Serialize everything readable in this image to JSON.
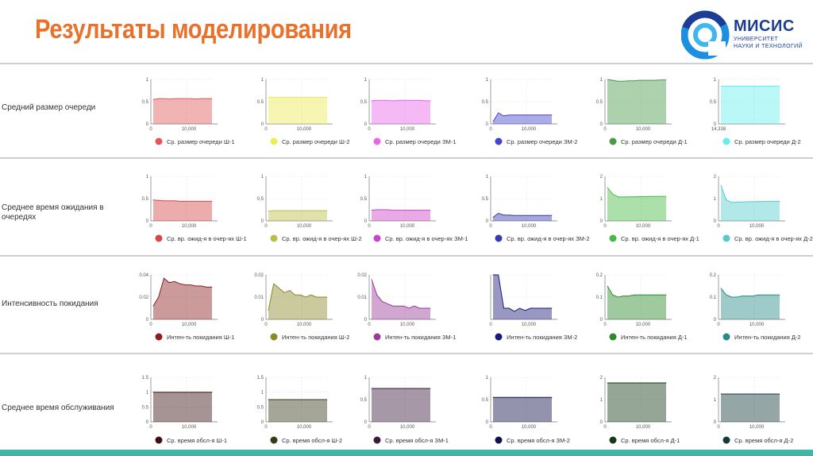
{
  "header": {
    "title": "Результаты моделирования"
  },
  "logo": {
    "name": "МИСИС",
    "line1": "УНИВЕРСИТЕТ",
    "line2": "НАУКИ И ТЕХНОЛОГИЙ"
  },
  "chart_data": [
    {
      "type": "area",
      "row_label": "Средний размер очереди",
      "charts": [
        {
          "series": "Ср. размер очереди Ш-1",
          "color": "#e05858",
          "yticks": [
            "0",
            "0.5",
            "1"
          ],
          "ylim": [
            0,
            1
          ],
          "xtick": "10,000",
          "x0": "0",
          "y": [
            0.55,
            0.57,
            0.57,
            0.56,
            0.57,
            0.57,
            0.57,
            0.57,
            0.56,
            0.57,
            0.57,
            0.57
          ]
        },
        {
          "series": "Ср. размер очереди Ш-2",
          "color": "#ecec55",
          "yticks": [
            "0",
            "0.5",
            "1"
          ],
          "ylim": [
            0,
            1
          ],
          "xtick": "10,000",
          "x0": "0",
          "y": [
            0.6,
            0.6,
            0.6,
            0.6,
            0.6,
            0.6,
            0.6,
            0.6,
            0.6,
            0.6,
            0.6,
            0.6
          ]
        },
        {
          "series": "Ср. размер очереди ЗМ-1",
          "color": "#e866e8",
          "yticks": [
            "0",
            "0.5",
            "1"
          ],
          "ylim": [
            0,
            1
          ],
          "xtick": "10,000",
          "x0": "0",
          "y": [
            0.52,
            0.53,
            0.53,
            0.53,
            0.52,
            0.53,
            0.53,
            0.53,
            0.53,
            0.53,
            0.52,
            0.52
          ]
        },
        {
          "series": "Ср. размер очереди ЗМ-2",
          "color": "#4444cc",
          "yticks": [
            "0",
            "0.5",
            "1"
          ],
          "ylim": [
            0,
            1
          ],
          "xtick": "10,000",
          "x0": "0",
          "y": [
            0.05,
            0.25,
            0.18,
            0.2,
            0.2,
            0.2,
            0.2,
            0.2,
            0.2,
            0.2,
            0.2,
            0.2
          ]
        },
        {
          "series": "Ср. размер очереди Д-1",
          "color": "#4a9a4a",
          "yticks": [
            "0",
            "0.5",
            "1"
          ],
          "ylim": [
            0,
            1
          ],
          "xtick": "10,000",
          "x0": "0",
          "y": [
            1,
            0.98,
            0.96,
            0.96,
            0.97,
            0.97,
            0.98,
            0.98,
            0.98,
            0.98,
            0.99,
            0.99
          ]
        },
        {
          "series": "Ср. размер очереди Д-2",
          "color": "#66eeee",
          "yticks": [
            "0",
            "0.5",
            "1"
          ],
          "ylim": [
            0,
            1
          ],
          "xtick": "",
          "x0": "14,338",
          "y": [
            0.85,
            0.85,
            0.85,
            0.85,
            0.85,
            0.85,
            0.85,
            0.85,
            0.85,
            0.85,
            0.85,
            0.85
          ]
        }
      ]
    },
    {
      "type": "area",
      "row_label": "Среднее время ожидания в очередях",
      "charts": [
        {
          "series": "Ср. вр. ожид-я в очер-ях Ш-1",
          "color": "#d84848",
          "yticks": [
            "0",
            "0.5",
            "1"
          ],
          "ylim": [
            0,
            1
          ],
          "xtick": "10,000",
          "x0": "0",
          "y": [
            0.47,
            0.46,
            0.45,
            0.45,
            0.45,
            0.44,
            0.44,
            0.44,
            0.44,
            0.44,
            0.44,
            0.44
          ]
        },
        {
          "series": "Ср. вр. ожид-я в очер-ях Ш-2",
          "color": "#bcbc48",
          "yticks": [
            "0",
            "0.5",
            "1"
          ],
          "ylim": [
            0,
            1
          ],
          "xtick": "10,000",
          "x0": "0",
          "y": [
            0.22,
            0.23,
            0.23,
            0.23,
            0.23,
            0.23,
            0.23,
            0.23,
            0.23,
            0.23,
            0.23,
            0.23
          ]
        },
        {
          "series": "Ср. вр. ожид-я в очер-ях ЗМ-1",
          "color": "#cc44cc",
          "yticks": [
            "0",
            "0.5",
            "1"
          ],
          "ylim": [
            0,
            1
          ],
          "xtick": "10,000",
          "x0": "0",
          "y": [
            0.24,
            0.25,
            0.25,
            0.25,
            0.24,
            0.24,
            0.24,
            0.24,
            0.24,
            0.24,
            0.24,
            0.24
          ]
        },
        {
          "series": "Ср. вр. ожид-я в очер-ях ЗМ-2",
          "color": "#3a3ab0",
          "yticks": [
            "0",
            "0.5",
            "1"
          ],
          "ylim": [
            0,
            1
          ],
          "xtick": "10,000",
          "x0": "0",
          "y": [
            0.08,
            0.17,
            0.13,
            0.13,
            0.12,
            0.12,
            0.12,
            0.12,
            0.12,
            0.12,
            0.12,
            0.12
          ]
        },
        {
          "series": "Ср. вр. ожид-я в очер-ях Д-1",
          "color": "#44bb44",
          "yticks": [
            "0",
            "1",
            "2"
          ],
          "ylim": [
            0,
            2
          ],
          "xtick": "10,000",
          "x0": "0",
          "y": [
            1.5,
            1.2,
            1.08,
            1.07,
            1.08,
            1.08,
            1.09,
            1.09,
            1.1,
            1.1,
            1.1,
            1.1
          ]
        },
        {
          "series": "Ср. вр. ожид-я в очер-ях Д-2",
          "color": "#55cccc",
          "yticks": [
            "0",
            "1",
            "2"
          ],
          "ylim": [
            0,
            2
          ],
          "xtick": "10,000",
          "x0": "0",
          "y": [
            1.6,
            0.95,
            0.82,
            0.85,
            0.85,
            0.86,
            0.86,
            0.87,
            0.87,
            0.88,
            0.88,
            0.88
          ]
        }
      ]
    },
    {
      "type": "area",
      "row_label": "Интенсивность покидания",
      "charts": [
        {
          "series": "Интен-ть покидания Ш-1",
          "color": "#8b1e1e",
          "yticks": [
            "0",
            "0.02",
            "0.04"
          ],
          "ylim": [
            0,
            0.04
          ],
          "xtick": "10,000",
          "x0": "0",
          "y": [
            0.012,
            0.02,
            0.037,
            0.033,
            0.034,
            0.032,
            0.031,
            0.031,
            0.03,
            0.03,
            0.029,
            0.029
          ]
        },
        {
          "series": "Интен-ть покидания Ш-2",
          "color": "#8a8a28",
          "yticks": [
            "0",
            "0.01",
            "0.02"
          ],
          "ylim": [
            0,
            0.02
          ],
          "xtick": "10,000",
          "x0": "0",
          "y": [
            0.004,
            0.016,
            0.014,
            0.012,
            0.013,
            0.011,
            0.011,
            0.01,
            0.011,
            0.01,
            0.01,
            0.01
          ]
        },
        {
          "series": "Интен-ть покидания ЗМ-1",
          "color": "#9a3a9a",
          "yticks": [
            "0",
            "0.01",
            "0.02"
          ],
          "ylim": [
            0,
            0.02
          ],
          "xtick": "10,000",
          "x0": "0",
          "y": [
            0.018,
            0.011,
            0.008,
            0.007,
            0.006,
            0.006,
            0.006,
            0.005,
            0.006,
            0.005,
            0.005,
            0.005
          ]
        },
        {
          "series": "Интен-ть покидания ЗМ-2",
          "color": "#1a1a7a",
          "yticks": [
            "",
            "",
            ""
          ],
          "ylim": [
            0,
            1
          ],
          "xtick": "10,000",
          "x0": "0",
          "y": [
            1,
            1,
            0.25,
            0.25,
            0.18,
            0.25,
            0.2,
            0.25,
            0.25,
            0.25,
            0.25,
            0.25
          ]
        },
        {
          "series": "Интен-ть покидания Д-1",
          "color": "#2a8a2a",
          "yticks": [
            "0",
            "0.1",
            "0.2"
          ],
          "ylim": [
            0,
            0.2
          ],
          "xtick": "10,000",
          "x0": "0",
          "y": [
            0.15,
            0.11,
            0.1,
            0.105,
            0.105,
            0.11,
            0.11,
            0.11,
            0.11,
            0.11,
            0.11,
            0.11
          ]
        },
        {
          "series": "Интен-ть покидания Д-2",
          "color": "#2a8a8a",
          "yticks": [
            "0",
            "0.1",
            "0.2"
          ],
          "ylim": [
            0,
            0.2
          ],
          "xtick": "10,000",
          "x0": "0",
          "y": [
            0.14,
            0.11,
            0.1,
            0.1,
            0.105,
            0.105,
            0.105,
            0.11,
            0.11,
            0.11,
            0.11,
            0.11
          ]
        }
      ]
    },
    {
      "type": "area",
      "row_label": "Среднее время обслуживания",
      "charts": [
        {
          "series": "Ср. время обсл-я Ш-1",
          "color": "#3a1212",
          "yticks": [
            "0",
            "0.5",
            "1",
            "1.5"
          ],
          "ylim": [
            0,
            1.5
          ],
          "xtick": "10,000",
          "x0": "0",
          "y": [
            1,
            1,
            1,
            1,
            1,
            1,
            1,
            1,
            1,
            1,
            1,
            1
          ]
        },
        {
          "series": "Ср. время обсл-я Ш-2",
          "color": "#3a3a1a",
          "yticks": [
            "0",
            "0.5",
            "1",
            "1.5"
          ],
          "ylim": [
            0,
            1.5
          ],
          "xtick": "10,000",
          "x0": "0",
          "y": [
            0.75,
            0.75,
            0.75,
            0.75,
            0.75,
            0.75,
            0.75,
            0.75,
            0.75,
            0.75,
            0.75,
            0.75
          ]
        },
        {
          "series": "Ср. время обсл-я ЗМ-1",
          "color": "#3a1a3a",
          "yticks": [
            "0",
            "0.5",
            "1"
          ],
          "ylim": [
            0,
            1
          ],
          "xtick": "10,000",
          "x0": "0",
          "y": [
            0.75,
            0.75,
            0.75,
            0.75,
            0.75,
            0.75,
            0.75,
            0.75,
            0.75,
            0.75,
            0.75,
            0.75
          ]
        },
        {
          "series": "Ср. время обсл-я ЗМ-2",
          "color": "#10104a",
          "yticks": [
            "0",
            "0.5",
            "1"
          ],
          "ylim": [
            0,
            1
          ],
          "xtick": "10,000",
          "x0": "0",
          "y": [
            0.55,
            0.55,
            0.55,
            0.55,
            0.55,
            0.55,
            0.55,
            0.55,
            0.55,
            0.55,
            0.55,
            0.55
          ]
        },
        {
          "series": "Ср. время обсл-я Д-1",
          "color": "#163a16",
          "yticks": [
            "0",
            "1",
            "2"
          ],
          "ylim": [
            0,
            2
          ],
          "xtick": "10,000",
          "x0": "0",
          "y": [
            1.75,
            1.75,
            1.75,
            1.75,
            1.75,
            1.75,
            1.75,
            1.75,
            1.75,
            1.75,
            1.75,
            1.75
          ]
        },
        {
          "series": "Ср. время обсл-я Д-2",
          "color": "#163a3a",
          "yticks": [
            "0",
            "1",
            "2"
          ],
          "ylim": [
            0,
            2
          ],
          "xtick": "10,000",
          "x0": "0",
          "y": [
            1.25,
            1.25,
            1.25,
            1.25,
            1.25,
            1.25,
            1.25,
            1.25,
            1.25,
            1.25,
            1.25,
            1.25
          ]
        }
      ]
    }
  ]
}
